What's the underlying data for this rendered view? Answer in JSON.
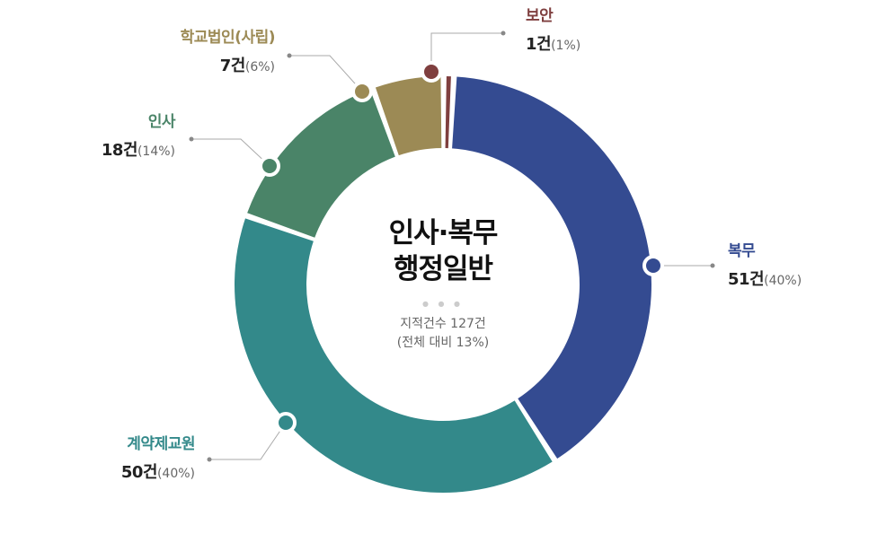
{
  "chart_data": {
    "type": "pie",
    "donut": true,
    "title": "인사·복무 행정일반",
    "subtitle_lines": [
      "지적건수 127건",
      "(전체 대비 13%)"
    ],
    "count_unit": "건",
    "categories": [
      "복무",
      "계약제교원",
      "인사",
      "학교법인(사립)",
      "보안"
    ],
    "values": [
      51,
      50,
      18,
      7,
      1
    ],
    "percent_labels": [
      "(40%)",
      "(40%)",
      "(14%)",
      "(6%)",
      "(1%)"
    ],
    "count_labels": [
      "51건",
      "50건",
      "18건",
      "7건",
      "1건"
    ],
    "colors": [
      "#344b91",
      "#33898a",
      "#4a8468",
      "#9c8a55",
      "#7f3f3f"
    ],
    "total": 127,
    "legend": "none (leader-line labels)"
  }
}
